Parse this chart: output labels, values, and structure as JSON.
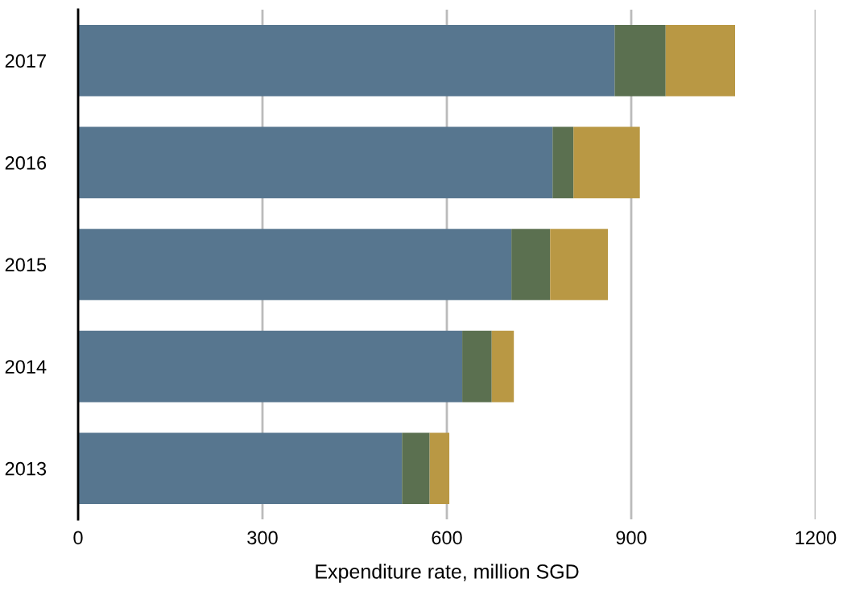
{
  "chart_data": {
    "type": "bar",
    "orientation": "horizontal",
    "stacked": true,
    "xlabel": "Expenditure rate, million SGD",
    "categories": [
      "2017",
      "2016",
      "2015",
      "2014",
      "2013"
    ],
    "series": [
      {
        "color": "#57768f",
        "values": [
          873,
          772,
          705,
          625,
          527
        ]
      },
      {
        "color": "#5b7050",
        "values": [
          83,
          34,
          63,
          48,
          45
        ]
      },
      {
        "color": "#b99844",
        "values": [
          113,
          108,
          94,
          36,
          32
        ]
      }
    ],
    "xlim": [
      0,
      1200
    ],
    "xticks": [
      0,
      300,
      600,
      900,
      1200
    ],
    "grid": "x"
  }
}
